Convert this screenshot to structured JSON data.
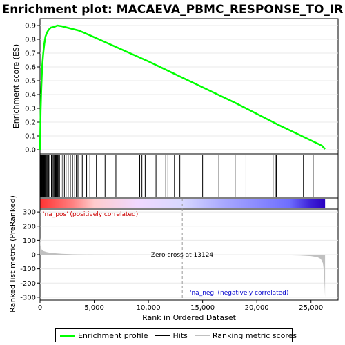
{
  "chart_data": {
    "type": "line",
    "title": "Enrichment plot: MACAEVA_PBMC_RESPONSE_TO_IR",
    "xlabel": "Rank in Ordered Dataset",
    "ylabel_top": "Enrichment score (ES)",
    "ylabel_bottom": "Ranked list metric (PreRanked)",
    "xlim": [
      0,
      27500
    ],
    "x_ticks": [
      0,
      5000,
      10000,
      15000,
      20000,
      25000
    ],
    "x_tick_labels": [
      "0",
      "5,000",
      "10,000",
      "15,000",
      "20,000",
      "25,000"
    ],
    "es_ylim": [
      -0.03,
      0.95
    ],
    "es_ticks": [
      0.0,
      0.1,
      0.2,
      0.3,
      0.4,
      0.5,
      0.6,
      0.7,
      0.8,
      0.9
    ],
    "es_tick_labels": [
      "0.0",
      "0.1",
      "0.2",
      "0.3",
      "0.4",
      "0.5",
      "0.6",
      "0.7",
      "0.8",
      "0.9"
    ],
    "metric_ylim": [
      -320,
      320
    ],
    "metric_ticks": [
      -300,
      -200,
      -100,
      0,
      100,
      200,
      300
    ],
    "metric_tick_labels": [
      "-300",
      "-200",
      "-100",
      "0",
      "100",
      "200",
      "300"
    ],
    "es_curve": {
      "x": [
        0,
        60,
        120,
        200,
        300,
        400,
        500,
        650,
        800,
        1000,
        1300,
        1600,
        2000,
        2500,
        3000,
        3500,
        4000,
        6000,
        8000,
        10000,
        12000,
        14000,
        16000,
        18000,
        20000,
        22000,
        24000,
        26000,
        26300
      ],
      "y": [
        0.0,
        0.28,
        0.45,
        0.6,
        0.7,
        0.77,
        0.82,
        0.85,
        0.87,
        0.885,
        0.89,
        0.9,
        0.895,
        0.885,
        0.875,
        0.865,
        0.85,
        0.78,
        0.71,
        0.64,
        0.565,
        0.49,
        0.415,
        0.34,
        0.26,
        0.18,
        0.105,
        0.03,
        0.005
      ]
    },
    "hits": [
      30,
      60,
      90,
      120,
      150,
      180,
      220,
      260,
      300,
      340,
      380,
      420,
      470,
      520,
      580,
      650,
      720,
      800,
      900,
      1050,
      1200,
      1280,
      1350,
      1400,
      1450,
      1500,
      1560,
      1620,
      1700,
      1800,
      1950,
      2100,
      2250,
      2400,
      2600,
      2800,
      3000,
      3200,
      3350,
      3500,
      3900,
      4300,
      4600,
      5200,
      6000,
      7000,
      9200,
      9400,
      9700,
      10700,
      11600,
      11800,
      12400,
      12900,
      15000,
      16500,
      18000,
      19000,
      21500,
      21700,
      21800,
      24300,
      25200
    ],
    "metric_profile": {
      "x": [
        0,
        50,
        150,
        300,
        600,
        1000,
        2000,
        3000,
        4000,
        5000,
        8000,
        13124,
        18000,
        22000,
        24000,
        25000,
        25600,
        25900,
        26100,
        26200,
        26300
      ],
      "y": [
        120,
        60,
        35,
        25,
        18,
        12,
        6,
        3,
        2,
        1,
        0.5,
        0,
        -1,
        -3,
        -6,
        -10,
        -18,
        -30,
        -60,
        -120,
        -300
      ]
    },
    "zero_cross": 13124,
    "zero_cross_label": "Zero cross at 13124",
    "pos_label": "'na_pos' (positively correlated)",
    "neg_label": "'na_neg' (negatively correlated)",
    "heatmap_colors": [
      "#ff3333",
      "#ff8080",
      "#ffcccc",
      "#f0d8ff",
      "#d8d8ff",
      "#a8a8ff",
      "#6e6eff",
      "#3b1fd6",
      "#2a00c0"
    ],
    "heatmap_stops": [
      0,
      3000,
      5000,
      9000,
      13124,
      17000,
      23000,
      25000,
      26300
    ],
    "es_color": "#00ff00",
    "hit_color": "#000000",
    "metric_color": "#c0c0c0",
    "pos_label_color": "#cc0000",
    "neg_label_color": "#0000cc",
    "legend": [
      {
        "label": "Enrichment profile",
        "color": "#00ff00"
      },
      {
        "label": "Hits",
        "color": "#000000"
      },
      {
        "label": "Ranking metric scores",
        "color": "#c0c0c0"
      }
    ]
  }
}
